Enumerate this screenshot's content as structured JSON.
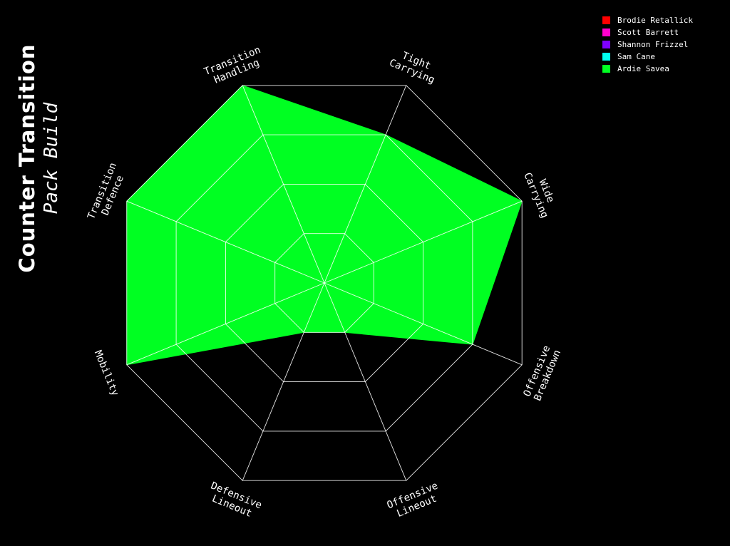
{
  "title": "Counter Transition",
  "subtitle": "Pack Build",
  "chart_data": {
    "type": "radar",
    "axes": [
      "Transition\nHandling",
      "Tight\nCarrying",
      "Wide\nCarrying",
      "Offensive\nBreakdown",
      "Offensive\nLineout",
      "Defensive\nLineout",
      "Mobility",
      "Transition\nDefence"
    ],
    "rmax": 4,
    "rings": [
      1,
      2,
      3,
      4
    ],
    "grid": true,
    "legend_position": "top-right",
    "series": [
      {
        "name": "Brodie Retallick",
        "color": "#ff0000",
        "values": []
      },
      {
        "name": "Scott Barrett",
        "color": "#ff00cc",
        "values": []
      },
      {
        "name": "Shannon Frizzel",
        "color": "#7f00ff",
        "values": []
      },
      {
        "name": "Sam Cane",
        "color": "#00ffee",
        "values": []
      },
      {
        "name": "Ardie Savea",
        "color": "#00ff22",
        "values": [
          4,
          3,
          4,
          3,
          1,
          1,
          4,
          4
        ]
      }
    ]
  }
}
